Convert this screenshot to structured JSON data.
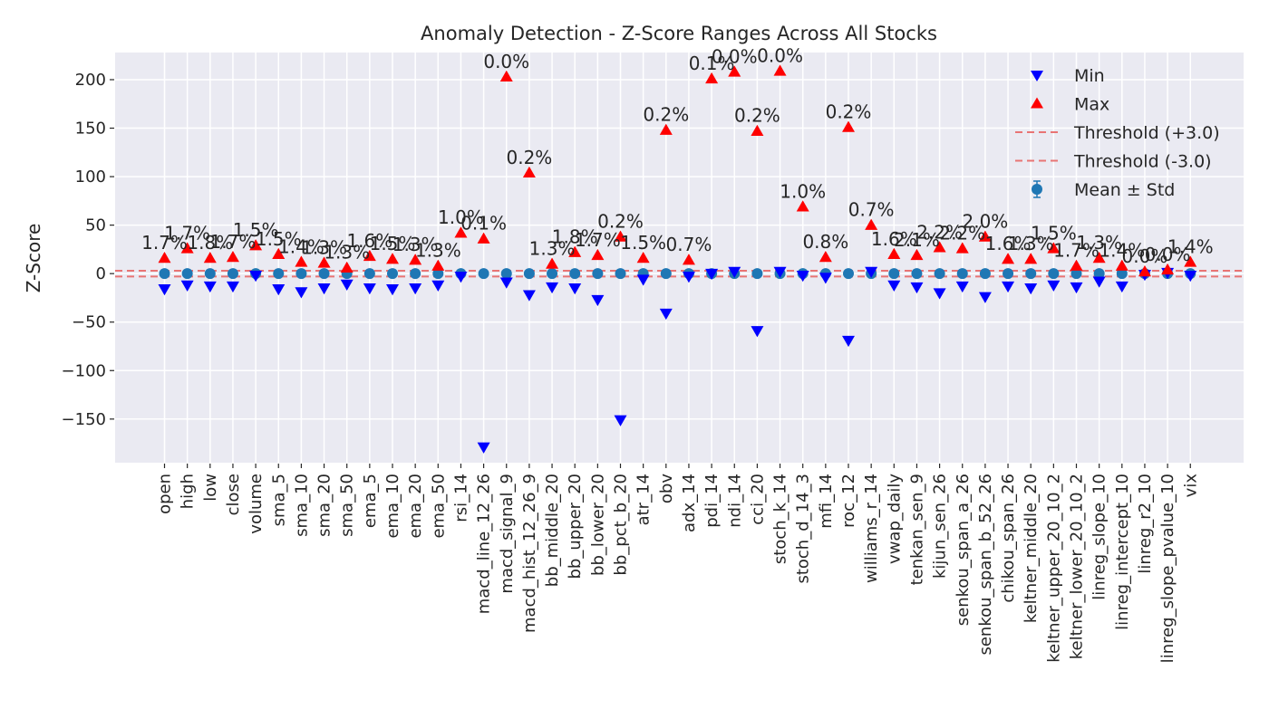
{
  "chart_data": {
    "type": "scatter",
    "title": "Anomaly Detection - Z-Score Ranges Across All Stocks",
    "xlabel": "",
    "ylabel": "Z-Score",
    "ylim": [
      -195,
      228
    ],
    "yticks": [
      -150,
      -100,
      -50,
      0,
      50,
      100,
      150,
      200
    ],
    "ytick_labels": [
      "−150",
      "−100",
      "−50",
      "0",
      "50",
      "100",
      "150",
      "200"
    ],
    "grid": true,
    "legend_position": "top-right",
    "thresholds": [
      {
        "name": "Threshold (+3.0)",
        "value": 3.0
      },
      {
        "name": "Threshold (-3.0)",
        "value": -3.0
      }
    ],
    "colors": {
      "background": "#eaeaf2",
      "grid": "#ffffff",
      "min": "#0000ff",
      "max": "#ff0000",
      "mean": "#1f77b4",
      "threshold": "#e87474",
      "text": "#262626"
    },
    "categories": [
      "open",
      "high",
      "low",
      "close",
      "volume",
      "sma_5",
      "sma_10",
      "sma_20",
      "sma_50",
      "ema_5",
      "ema_10",
      "ema_20",
      "ema_50",
      "rsi_14",
      "macd_line_12_26",
      "macd_signal_9",
      "macd_hist_12_26_9",
      "bb_middle_20",
      "bb_upper_20",
      "bb_lower_20",
      "bb_pct_b_20",
      "atr_14",
      "obv",
      "adx_14",
      "pdi_14",
      "ndi_14",
      "cci_20",
      "stoch_k_14",
      "stoch_d_14_3",
      "mfi_14",
      "roc_12",
      "williams_r_14",
      "vwap_daily",
      "tenkan_sen_9",
      "kijun_sen_26",
      "senkou_span_a_26",
      "senkou_span_b_52_26",
      "chikou_span_26",
      "keltner_middle_20",
      "keltner_upper_20_10_2",
      "keltner_lower_20_10_2",
      "linreg_slope_10",
      "linreg_intercept_10",
      "linreg_r2_10",
      "linreg_slope_pvalue_10",
      "vix"
    ],
    "series": [
      {
        "name": "Min",
        "marker": "triangle-down",
        "values": [
          -16,
          -12,
          -13,
          -13,
          -2,
          -16,
          -19,
          -15,
          -11,
          -15,
          -16,
          -15,
          -12,
          -3,
          -179,
          -9,
          -22,
          -14,
          -15,
          -27,
          -151,
          -6,
          -41,
          -3,
          0,
          2,
          -59,
          2,
          -2,
          -4,
          -69,
          2,
          -12,
          -14,
          -20,
          -13,
          -24,
          -13,
          -15,
          -12,
          -14,
          -8,
          -13,
          -1,
          1,
          -2
        ]
      },
      {
        "name": "Max",
        "marker": "triangle-up",
        "values": [
          16,
          26,
          16,
          17,
          29,
          20,
          12,
          11,
          6,
          18,
          15,
          14,
          8,
          42,
          36,
          203,
          104,
          10,
          22,
          19,
          38,
          16,
          148,
          14,
          201,
          208,
          147,
          209,
          69,
          17,
          151,
          50,
          20,
          19,
          27,
          26,
          38,
          15,
          15,
          26,
          8,
          16,
          8,
          2,
          4,
          12
        ]
      },
      {
        "name": "Mean ± Std",
        "marker": "circle",
        "values": [
          0,
          0,
          0,
          0,
          0,
          0,
          0,
          0,
          0,
          0,
          0,
          0,
          0,
          0,
          0,
          0,
          0,
          0,
          0,
          0,
          0,
          0,
          0,
          0,
          0,
          0,
          0,
          0,
          0,
          0,
          0,
          0,
          0,
          0,
          0,
          0,
          0,
          0,
          0,
          0,
          0,
          0,
          0,
          0,
          0,
          0
        ],
        "error": [
          1,
          1,
          1,
          1,
          1,
          1,
          1,
          1,
          1,
          1,
          1,
          1,
          1,
          1,
          1,
          1,
          1,
          1,
          1,
          1,
          1,
          1,
          1,
          1,
          1,
          1,
          1,
          1,
          1,
          1,
          1,
          1,
          1,
          1,
          1,
          1,
          1,
          1,
          1,
          1,
          1,
          1,
          1,
          1,
          1,
          1
        ]
      }
    ],
    "annotations": [
      "1.7%",
      "1.7%",
      "1.8%",
      "1.7%",
      "1.5%",
      "1.5%",
      "1.4%",
      "1.3%",
      "1.3%",
      "1.6%",
      "1.5%",
      "1.3%",
      "1.3%",
      "1.0%",
      "0.1%",
      "0.0%",
      "0.2%",
      "1.3%",
      "1.8%",
      "1.7%",
      "0.2%",
      "1.5%",
      "0.2%",
      "0.7%",
      "0.1%",
      "0.0%",
      "0.2%",
      "0.0%",
      "1.0%",
      "0.8%",
      "0.2%",
      "0.7%",
      "1.6%",
      "2.1%",
      "2.2%",
      "2.2%",
      "2.0%",
      "1.6%",
      "1.3%",
      "1.5%",
      "1.7%",
      "1.3%",
      "1.4%",
      "0.0%",
      "0.0%",
      "1.4%"
    ],
    "legend": [
      {
        "label": "Min",
        "marker": "triangle-down"
      },
      {
        "label": "Max",
        "marker": "triangle-up"
      },
      {
        "label": "Threshold (+3.0)",
        "marker": "dashed-line"
      },
      {
        "label": "Threshold (-3.0)",
        "marker": "dashed-line"
      },
      {
        "label": "Mean ± Std",
        "marker": "errorbar-circle"
      }
    ]
  }
}
